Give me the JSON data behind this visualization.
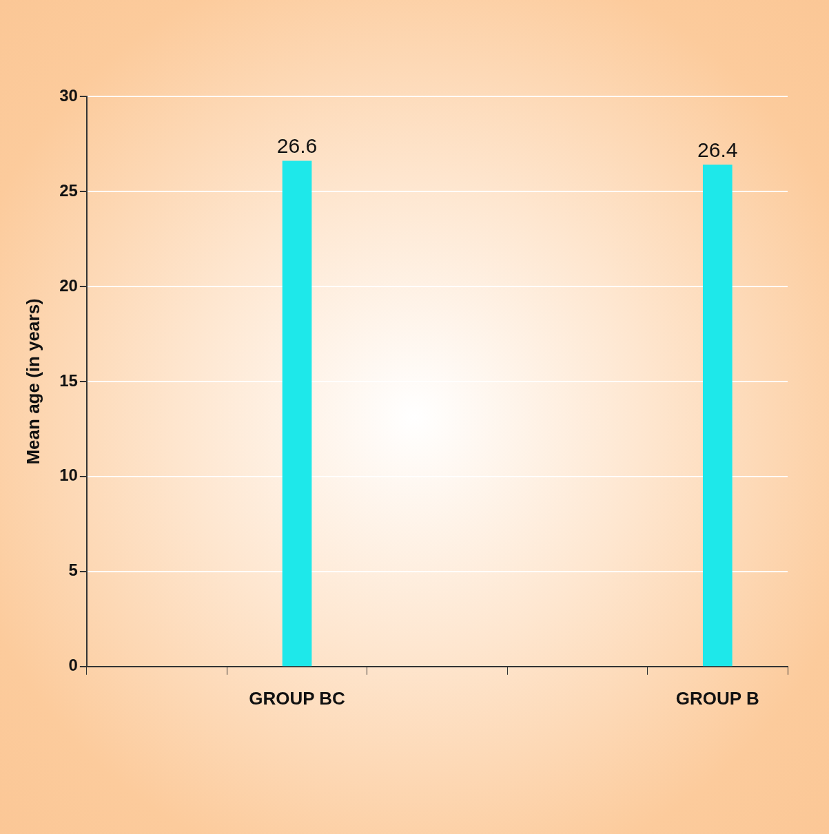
{
  "chart_data": {
    "type": "bar",
    "categories": [
      null,
      "GROUP BC",
      null,
      null,
      "GROUP B"
    ],
    "values": [
      null,
      26.6,
      null,
      null,
      26.4
    ],
    "color": "#1ee8ea",
    "ylabel": "Mean age (in years)",
    "ylim": [
      0,
      30
    ],
    "yticks": [
      0,
      5,
      10,
      15,
      20,
      25,
      30
    ],
    "grid": "y",
    "data_labels": true,
    "legend": false
  }
}
